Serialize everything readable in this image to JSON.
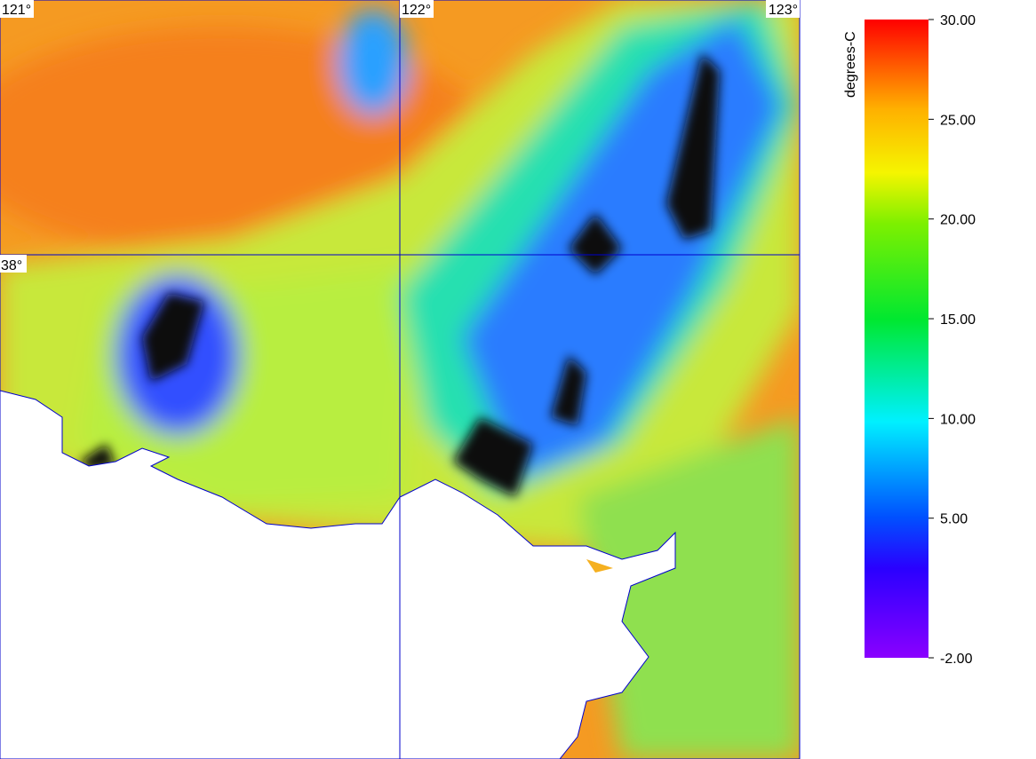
{
  "map": {
    "meridians": [
      {
        "value": 121,
        "label": "121°"
      },
      {
        "value": 122,
        "label": "122°"
      },
      {
        "value": 123,
        "label": "123°"
      }
    ],
    "parallels": [
      {
        "value": 38,
        "label": "38°"
      }
    ],
    "colorbar": {
      "title": "degrees-C",
      "lim": [
        -2,
        30
      ],
      "ticks": [
        {
          "value": 30,
          "label": "30.00"
        },
        {
          "value": 25,
          "label": "25.00"
        },
        {
          "value": 20,
          "label": "20.00"
        },
        {
          "value": 15,
          "label": "15.00"
        },
        {
          "value": 10,
          "label": "10.00"
        },
        {
          "value": 5,
          "label": "5.00"
        },
        {
          "value": -2,
          "label": "-2.00"
        }
      ]
    }
  }
}
